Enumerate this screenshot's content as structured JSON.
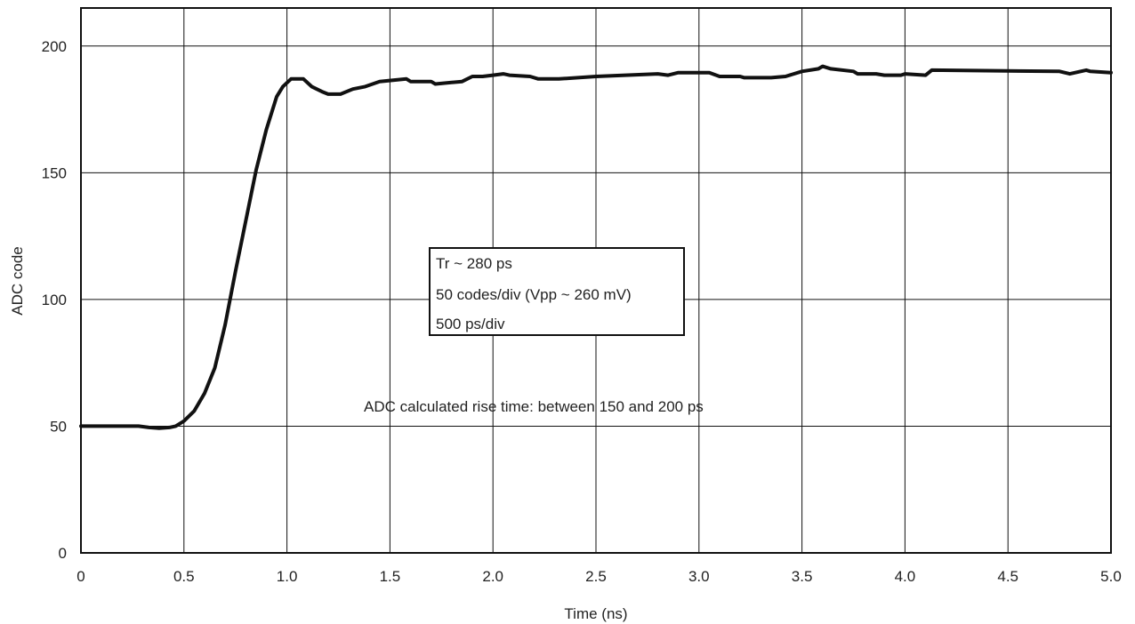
{
  "chart_data": {
    "type": "line",
    "xlabel": "Time (ns)",
    "ylabel": "ADC code",
    "xlim": [
      0,
      5.0
    ],
    "ylim": [
      0,
      215
    ],
    "x_ticks": [
      "0",
      "0.5",
      "1.0",
      "1.5",
      "2.0",
      "2.5",
      "3.0",
      "3.5",
      "4.0",
      "4.5",
      "5.0"
    ],
    "y_ticks": [
      "0",
      "50",
      "100",
      "150",
      "200"
    ],
    "grid": true,
    "line_color": "#111111",
    "annotation_box": [
      "Tr ~ 280 ps",
      "50 codes/div (Vpp ~ 260 mV)",
      "500 ps/div"
    ],
    "annotation": "ADC calculated rise time: between 150 and 200 ps",
    "series": [
      {
        "x": [
          0.0,
          0.28,
          0.33,
          0.38,
          0.43,
          0.46,
          0.5,
          0.55,
          0.6,
          0.65,
          0.7,
          0.75,
          0.8,
          0.85,
          0.9,
          0.95,
          0.98,
          1.02,
          1.08,
          1.12,
          1.17,
          1.2,
          1.26,
          1.32,
          1.38,
          1.45,
          1.58,
          1.6,
          1.7,
          1.72,
          1.85,
          1.9,
          1.95,
          2.0,
          2.05,
          2.08,
          2.18,
          2.22,
          2.3,
          2.32,
          2.5,
          2.8,
          2.85,
          2.9,
          3.05,
          3.1,
          3.2,
          3.22,
          3.35,
          3.42,
          3.5,
          3.58,
          3.6,
          3.64,
          3.75,
          3.77,
          3.86,
          3.9,
          3.98,
          4.0,
          4.1,
          4.13,
          4.75,
          4.8,
          4.88,
          4.9,
          5.0
        ],
        "values": [
          50,
          50,
          49.5,
          49.2,
          49.5,
          50,
          52,
          56,
          63,
          73,
          90,
          111,
          131,
          151,
          167,
          180,
          184,
          187,
          187,
          184,
          182,
          181,
          181,
          183,
          184,
          186,
          187,
          186,
          186,
          185,
          186,
          188,
          188,
          188.5,
          189,
          188.5,
          188,
          187,
          187,
          187,
          188,
          189,
          188.5,
          189.5,
          189.5,
          188,
          188,
          187.5,
          187.5,
          188,
          190,
          191,
          192,
          191,
          190,
          189,
          189,
          188.5,
          188.5,
          189,
          188.5,
          190.5,
          190,
          189,
          190.5,
          190,
          189.5
        ]
      }
    ]
  }
}
